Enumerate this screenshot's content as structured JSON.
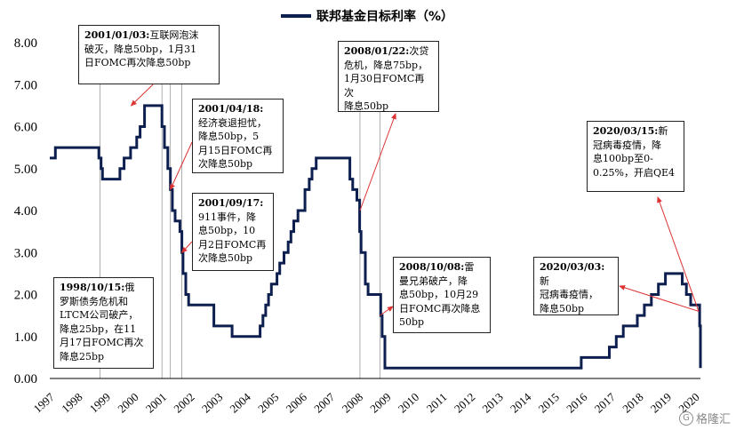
{
  "chart_data": {
    "type": "line",
    "title": "",
    "xlabel": "",
    "ylabel": "",
    "ylim": [
      0,
      8
    ],
    "legend": {
      "label": "联邦基金目标利率（%）",
      "placement": "top-center"
    },
    "series_color": "#0d1f4f",
    "y_ticks": [
      "0.00",
      "1.00",
      "2.00",
      "3.00",
      "4.00",
      "5.00",
      "6.00",
      "7.00",
      "8.00"
    ],
    "x_ticks": [
      "1997",
      "1998",
      "1999",
      "2000",
      "2001",
      "2002",
      "2003",
      "2004",
      "2005",
      "2006",
      "2007",
      "2008",
      "2009",
      "2010",
      "2011",
      "2012",
      "2013",
      "2014",
      "2015",
      "2016",
      "2017",
      "2018",
      "2019",
      "2020"
    ],
    "series": [
      {
        "values": [
          [
            1997.0,
            5.25
          ],
          [
            1997.2,
            5.5
          ],
          [
            1998.75,
            5.25
          ],
          [
            1998.83,
            5.0
          ],
          [
            1998.88,
            4.75
          ],
          [
            1999.5,
            5.0
          ],
          [
            1999.65,
            5.25
          ],
          [
            1999.88,
            5.5
          ],
          [
            2000.1,
            5.75
          ],
          [
            2000.22,
            6.0
          ],
          [
            2000.38,
            6.5
          ],
          [
            2001.0,
            6.0
          ],
          [
            2001.09,
            5.5
          ],
          [
            2001.21,
            5.0
          ],
          [
            2001.3,
            4.5
          ],
          [
            2001.37,
            4.0
          ],
          [
            2001.47,
            3.75
          ],
          [
            2001.64,
            3.5
          ],
          [
            2001.71,
            3.0
          ],
          [
            2001.75,
            2.5
          ],
          [
            2001.85,
            2.0
          ],
          [
            2001.95,
            1.75
          ],
          [
            2002.85,
            1.25
          ],
          [
            2003.5,
            1.0
          ],
          [
            2004.5,
            1.25
          ],
          [
            2004.6,
            1.5
          ],
          [
            2004.7,
            1.75
          ],
          [
            2004.8,
            2.0
          ],
          [
            2004.9,
            2.25
          ],
          [
            2005.1,
            2.5
          ],
          [
            2005.2,
            2.75
          ],
          [
            2005.35,
            3.0
          ],
          [
            2005.5,
            3.25
          ],
          [
            2005.6,
            3.5
          ],
          [
            2005.7,
            3.75
          ],
          [
            2005.85,
            4.0
          ],
          [
            2006.1,
            4.5
          ],
          [
            2006.25,
            4.75
          ],
          [
            2006.35,
            5.0
          ],
          [
            2006.5,
            5.25
          ],
          [
            2007.7,
            4.75
          ],
          [
            2007.8,
            4.5
          ],
          [
            2007.95,
            4.25
          ],
          [
            2008.05,
            3.5
          ],
          [
            2008.1,
            3.0
          ],
          [
            2008.25,
            2.25
          ],
          [
            2008.35,
            2.0
          ],
          [
            2008.8,
            1.5
          ],
          [
            2008.85,
            1.0
          ],
          [
            2008.95,
            0.25
          ],
          [
            2015.95,
            0.5
          ],
          [
            2016.95,
            0.75
          ],
          [
            2017.2,
            1.0
          ],
          [
            2017.45,
            1.25
          ],
          [
            2017.95,
            1.5
          ],
          [
            2018.2,
            1.75
          ],
          [
            2018.45,
            2.0
          ],
          [
            2018.7,
            2.25
          ],
          [
            2018.95,
            2.5
          ],
          [
            2019.55,
            2.25
          ],
          [
            2019.7,
            2.0
          ],
          [
            2019.85,
            1.75
          ],
          [
            2020.17,
            1.25
          ],
          [
            2020.2,
            0.25
          ]
        ]
      }
    ]
  },
  "annotations": [
    {
      "date": "1998/10/15:",
      "text": "俄\n罗斯债务危机和\nLTCM公司破产，\n降息25bp，在11\n月17日FOMC再次\n降息25bp"
    },
    {
      "date": "2001/01/03:",
      "text": "互联网泡沫\n破灭，降息50bp，1月31\n日FOMC再次降息50bp"
    },
    {
      "date": "2001/04/18:",
      "text": "\n经济衰退担忧，\n降息50bp，5\n月15日FOMC再\n次降息50bp"
    },
    {
      "date": "2001/09/17:",
      "text": "\n911事件，降\n息50bp，10\n月2日FOMC再\n次降息50bp"
    },
    {
      "date": "2008/01/22:",
      "text": "次贷\n危机，降息75bp，\n1月30日FOMC再次\n降息50bp"
    },
    {
      "date": "2008/10/08:",
      "text": "雷\n曼兄弟破产，降\n息50bp，10月29\n日FOMC再次降息\n50bp"
    },
    {
      "date": "2020/03/03:",
      "text": "新\n冠病毒疫情，\n降息50bp"
    },
    {
      "date": "2020/03/15:",
      "text": "新\n冠病毒疫情，降\n息100bp至0-\n0.25%，开启QE4"
    }
  ],
  "watermark": {
    "text": "格隆汇",
    "icon": "G"
  }
}
